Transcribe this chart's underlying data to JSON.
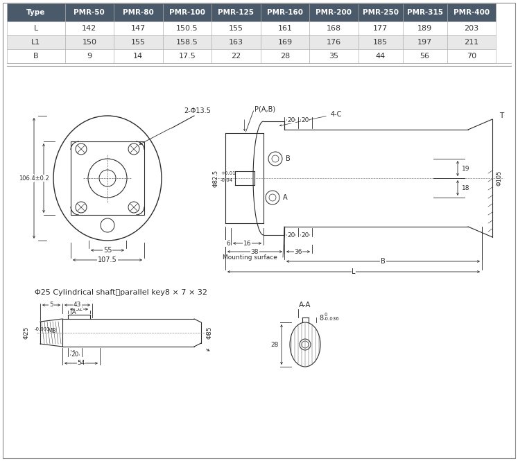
{
  "table": {
    "header": [
      "Type",
      "PMR-50",
      "PMR-80",
      "PMR-100",
      "PMR-125",
      "PMR-160",
      "PMR-200",
      "PMR-250",
      "PMR-315",
      "PMR-400"
    ],
    "rows": [
      [
        "L",
        "142",
        "147",
        "150.5",
        "155",
        "161",
        "168",
        "177",
        "189",
        "203"
      ],
      [
        "L1",
        "150",
        "155",
        "158.5",
        "163",
        "169",
        "176",
        "185",
        "197",
        "211"
      ],
      [
        "B",
        "9",
        "14",
        "17.5",
        "22",
        "28",
        "35",
        "44",
        "56",
        "70"
      ]
    ],
    "header_bg": "#4a5a6a",
    "header_fg": "#ffffff",
    "row_bg": [
      "#ffffff",
      "#e8e8e8",
      "#ffffff"
    ],
    "border_color": "#aaaaaa"
  },
  "background": "#ffffff"
}
